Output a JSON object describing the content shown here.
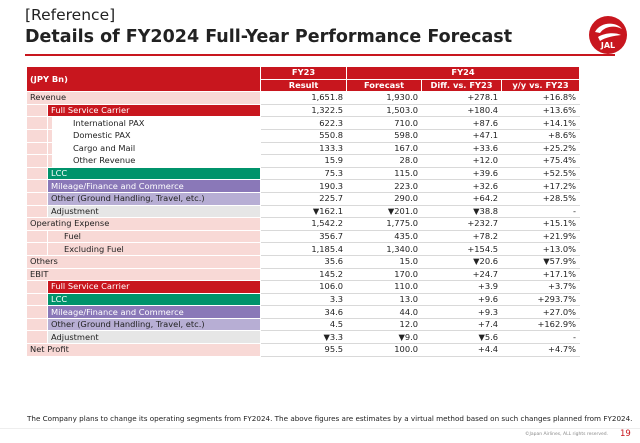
{
  "header": {
    "bracket": "[Reference]",
    "title": "Details of FY2024 Full-Year Performance Forecast",
    "logo_text": "JAL"
  },
  "table": {
    "unit": "(JPY Bn)",
    "fy23": "FY23",
    "fy24": "FY24",
    "col_result": "Result",
    "col_forecast": "Forecast",
    "col_diff": "Diff. vs. FY23",
    "col_yy": "y/y vs. FY23",
    "rows": [
      {
        "label": "Revenue",
        "result": "1,651.8",
        "forecast": "1,930.0",
        "diff": "+278.1",
        "yy": "+16.8%"
      },
      {
        "label": "Full Service Carrier",
        "result": "1,322.5",
        "forecast": "1,503.0",
        "diff": "+180.4",
        "yy": "+13.6%"
      },
      {
        "label": "International PAX",
        "result": "622.3",
        "forecast": "710.0",
        "diff": "+87.6",
        "yy": "+14.1%"
      },
      {
        "label": "Domestic PAX",
        "result": "550.8",
        "forecast": "598.0",
        "diff": "+47.1",
        "yy": "+8.6%"
      },
      {
        "label": "Cargo and Mail",
        "result": "133.3",
        "forecast": "167.0",
        "diff": "+33.6",
        "yy": "+25.2%"
      },
      {
        "label": "Other Revenue",
        "result": "15.9",
        "forecast": "28.0",
        "diff": "+12.0",
        "yy": "+75.4%"
      },
      {
        "label": "LCC",
        "result": "75.3",
        "forecast": "115.0",
        "diff": "+39.6",
        "yy": "+52.5%"
      },
      {
        "label": "Mileage/Finance and Commerce",
        "result": "190.3",
        "forecast": "223.0",
        "diff": "+32.6",
        "yy": "+17.2%"
      },
      {
        "label": "Other (Ground Handling, Travel, etc.)",
        "result": "225.7",
        "forecast": "290.0",
        "diff": "+64.2",
        "yy": "+28.5%"
      },
      {
        "label": "Adjustment",
        "result": "▼162.1",
        "forecast": "▼201.0",
        "diff": "▼38.8",
        "yy": "-"
      },
      {
        "label": "Operating Expense",
        "result": "1,542.2",
        "forecast": "1,775.0",
        "diff": "+232.7",
        "yy": "+15.1%"
      },
      {
        "label": "Fuel",
        "result": "356.7",
        "forecast": "435.0",
        "diff": "+78.2",
        "yy": "+21.9%"
      },
      {
        "label": "Excluding Fuel",
        "result": "1,185.4",
        "forecast": "1,340.0",
        "diff": "+154.5",
        "yy": "+13.0%"
      },
      {
        "label": "Others",
        "result": "35.6",
        "forecast": "15.0",
        "diff": "▼20.6",
        "yy": "▼57.9%"
      },
      {
        "label": "EBIT",
        "result": "145.2",
        "forecast": "170.0",
        "diff": "+24.7",
        "yy": "+17.1%"
      },
      {
        "label": "Full Service Carrier",
        "result": "106.0",
        "forecast": "110.0",
        "diff": "+3.9",
        "yy": "+3.7%"
      },
      {
        "label": "LCC",
        "result": "3.3",
        "forecast": "13.0",
        "diff": "+9.6",
        "yy": "+293.7%"
      },
      {
        "label": "Mileage/Finance and Commerce",
        "result": "34.6",
        "forecast": "44.0",
        "diff": "+9.3",
        "yy": "+27.0%"
      },
      {
        "label": "Other (Ground Handling, Travel, etc.)",
        "result": "4.5",
        "forecast": "12.0",
        "diff": "+7.4",
        "yy": "+162.9%"
      },
      {
        "label": "Adjustment",
        "result": "▼3.3",
        "forecast": "▼9.0",
        "diff": "▼5.6",
        "yy": "-"
      },
      {
        "label": "Net Profit",
        "result": "95.5",
        "forecast": "100.0",
        "diff": "+4.4",
        "yy": "+4.7%"
      }
    ]
  },
  "footer": {
    "note": "The Company plans to change its operating segments from FY2024. The above figures are estimates by a virtual method based on such changes planned from FY2024.",
    "copyright": "©Japan Airlines, ALL rights reserved.",
    "page": "19"
  },
  "colors": {
    "jal_red": "#c8161e",
    "lcc_green": "#00936b",
    "mileage_purple": "#8a78b8",
    "other_lavender": "#b7aed4",
    "row_pink": "#f8d9d6"
  }
}
